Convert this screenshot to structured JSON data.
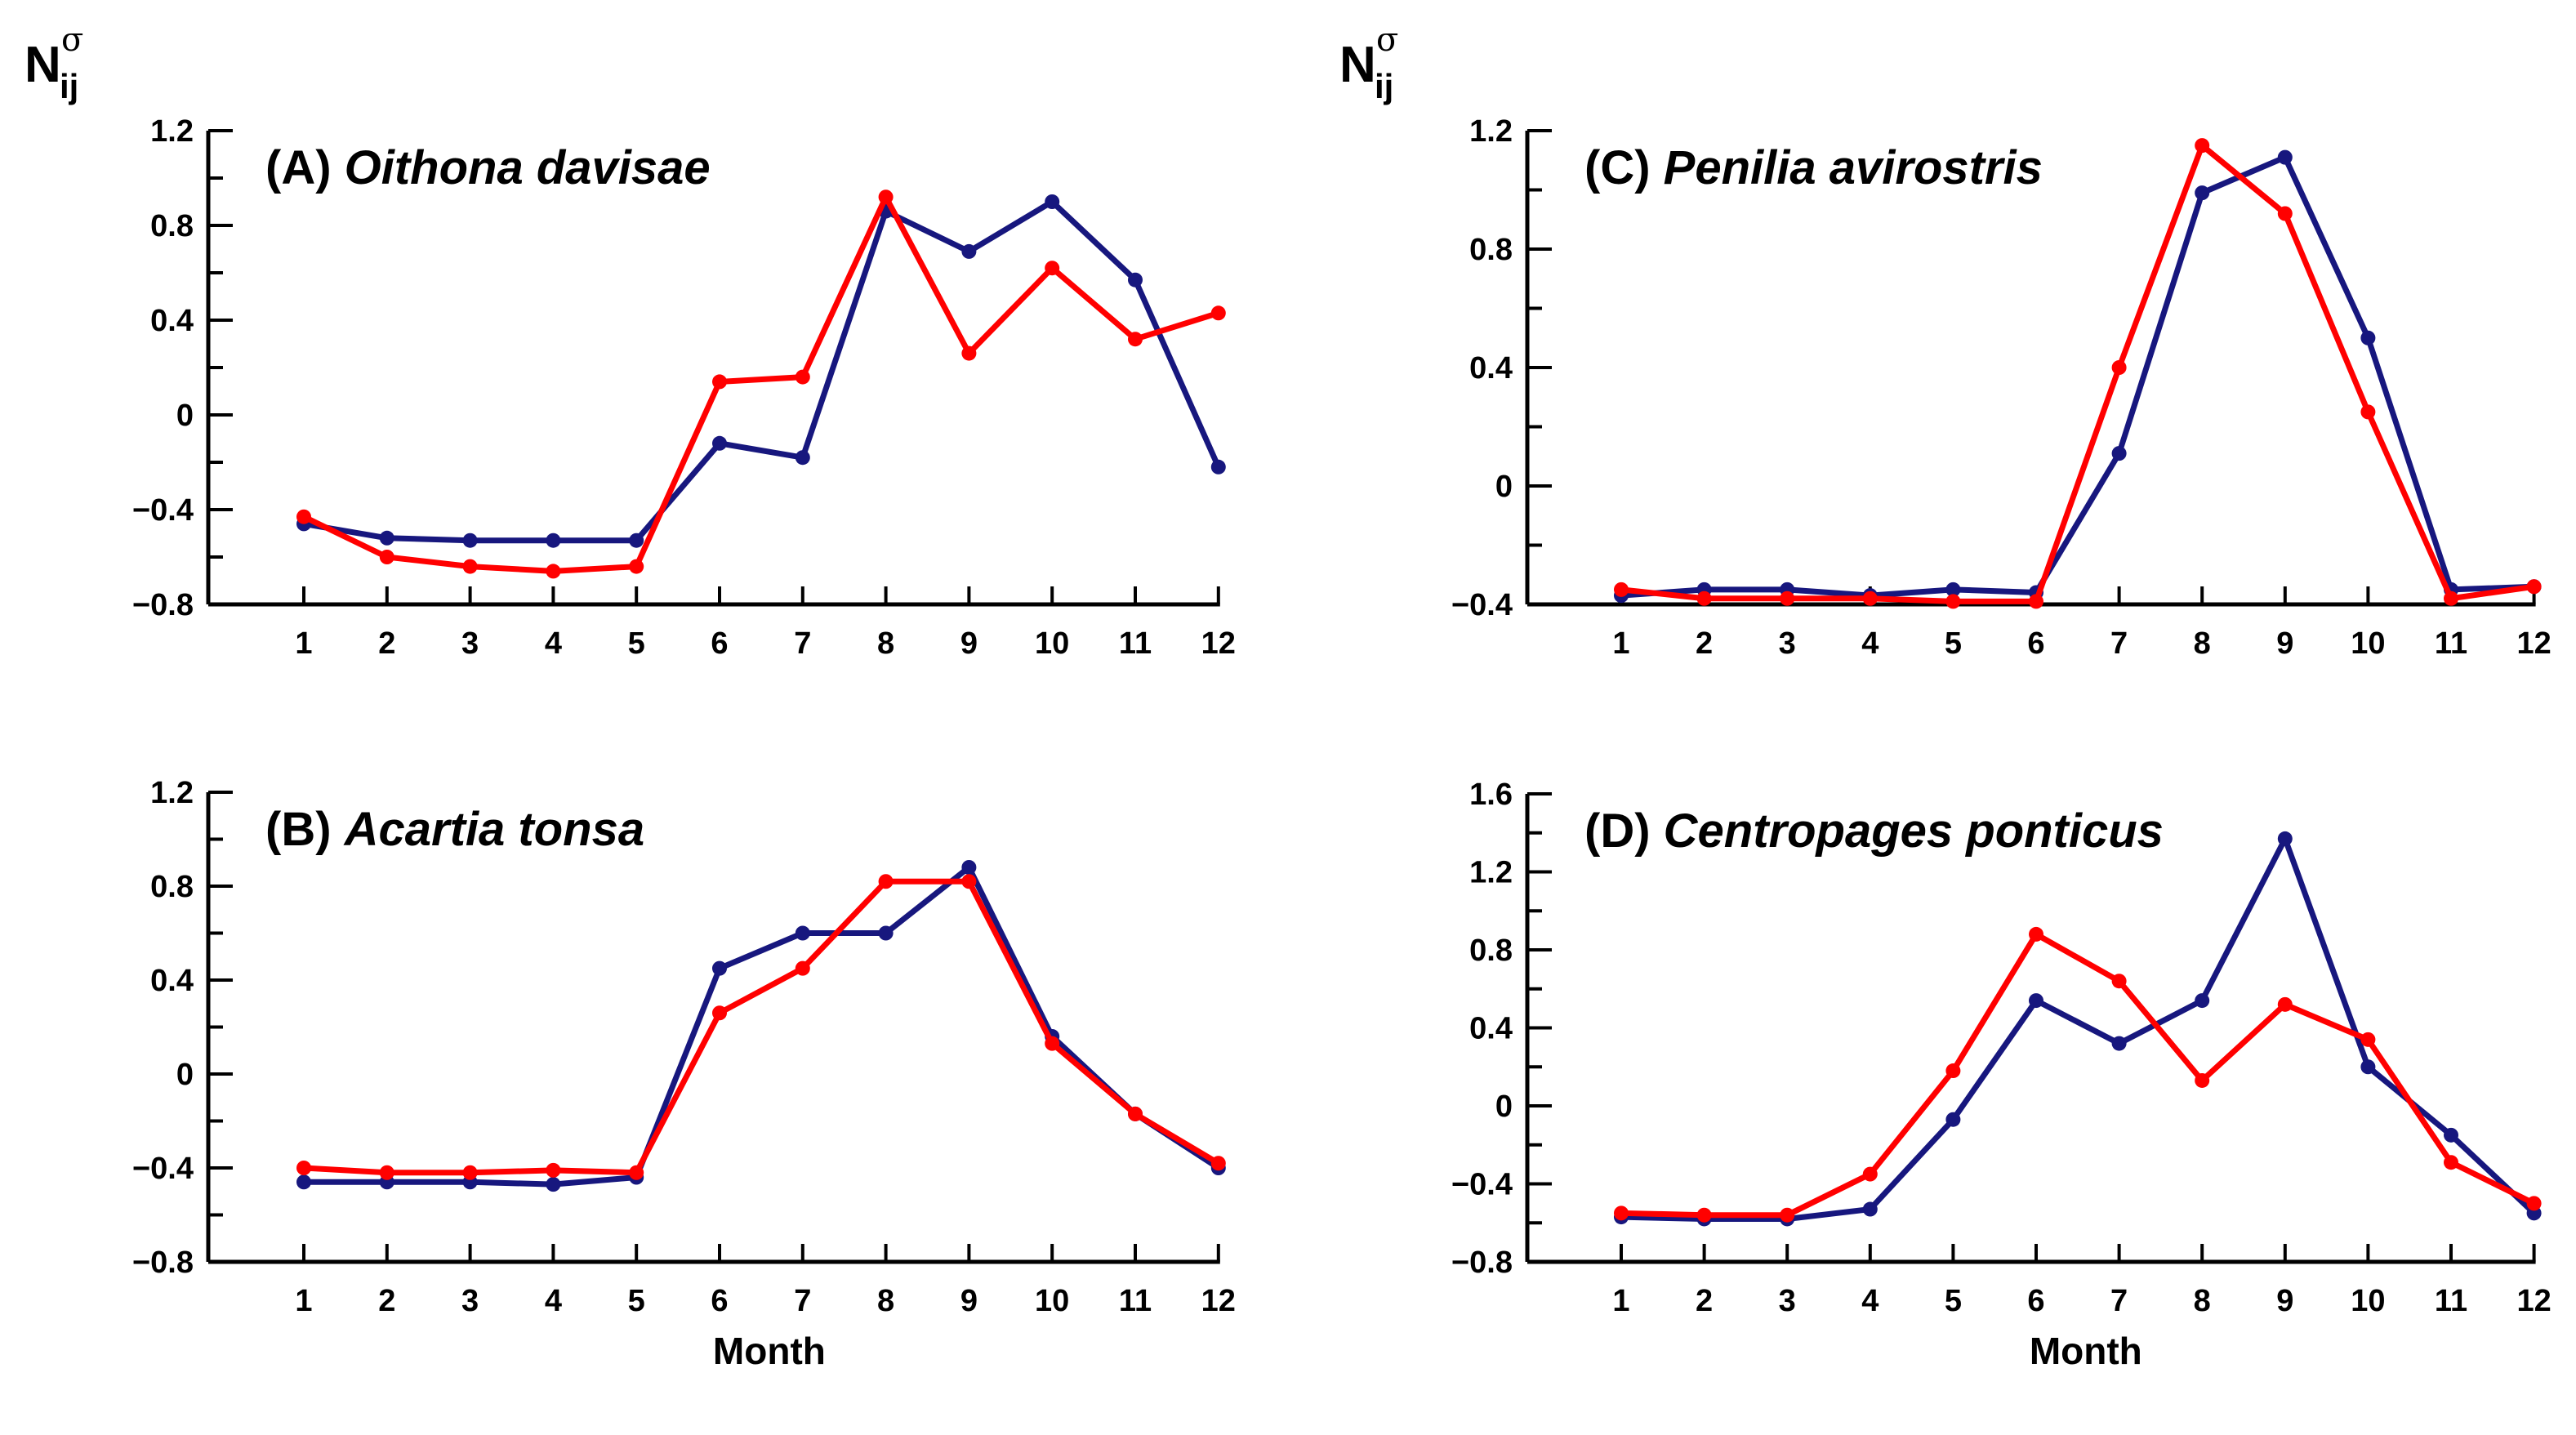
{
  "ylabel": {
    "main": "N",
    "sub": "ij",
    "sup": "σ"
  },
  "colors": {
    "series1": "#17177e",
    "series2": "#ff0000",
    "axis": "#000000"
  },
  "chart_data": [
    {
      "id": "A",
      "type": "line",
      "title_prefix": "(A)",
      "title_species": "Oithona davisae",
      "xlabel": "",
      "ylabel": "N_ij^σ",
      "x": [
        1,
        2,
        3,
        4,
        5,
        6,
        7,
        8,
        9,
        10,
        11,
        12
      ],
      "xticks": [
        "1",
        "2",
        "3",
        "4",
        "5",
        "6",
        "7",
        "8",
        "9",
        "10",
        "11",
        "12"
      ],
      "ylim": [
        -0.8,
        1.2
      ],
      "yticks": [
        "-0.8",
        "-0.4",
        "0",
        "0.4",
        "0.8",
        "1.2"
      ],
      "series": [
        {
          "name": "blue",
          "values": [
            -0.46,
            -0.52,
            -0.53,
            -0.53,
            -0.53,
            -0.12,
            -0.18,
            0.86,
            0.69,
            0.9,
            0.57,
            -0.22
          ]
        },
        {
          "name": "red",
          "values": [
            -0.43,
            -0.6,
            -0.64,
            -0.66,
            -0.64,
            0.14,
            0.16,
            0.92,
            0.26,
            0.62,
            0.32,
            0.43
          ]
        }
      ]
    },
    {
      "id": "B",
      "type": "line",
      "title_prefix": "(B)",
      "title_species": "Acartia tonsa",
      "xlabel": "Month",
      "ylabel": "",
      "x": [
        1,
        2,
        3,
        4,
        5,
        6,
        7,
        8,
        9,
        10,
        11,
        12
      ],
      "xticks": [
        "1",
        "2",
        "3",
        "4",
        "5",
        "6",
        "7",
        "8",
        "9",
        "10",
        "11",
        "12"
      ],
      "ylim": [
        -0.8,
        1.2
      ],
      "yticks": [
        "-0.8",
        "-0.4",
        "0",
        "0.4",
        "0.8",
        "1.2"
      ],
      "series": [
        {
          "name": "blue",
          "values": [
            -0.46,
            -0.46,
            -0.46,
            -0.47,
            -0.44,
            0.45,
            0.6,
            0.6,
            0.88,
            0.16,
            -0.17,
            -0.4
          ]
        },
        {
          "name": "red",
          "values": [
            -0.4,
            -0.42,
            -0.42,
            -0.41,
            -0.42,
            0.26,
            0.45,
            0.82,
            0.82,
            0.13,
            -0.17,
            -0.38
          ]
        }
      ]
    },
    {
      "id": "C",
      "type": "line",
      "title_prefix": "(C)",
      "title_species": "Penilia avirostris",
      "xlabel": "",
      "ylabel": "N_ij^σ",
      "x": [
        1,
        2,
        3,
        4,
        5,
        6,
        7,
        8,
        9,
        10,
        11,
        12
      ],
      "xticks": [
        "1",
        "2",
        "3",
        "4",
        "5",
        "6",
        "7",
        "8",
        "9",
        "10",
        "11",
        "12"
      ],
      "ylim": [
        -0.4,
        1.2
      ],
      "yticks": [
        "-0.4",
        "0",
        "0.4",
        "0.8",
        "1.2"
      ],
      "series": [
        {
          "name": "blue",
          "values": [
            -0.37,
            -0.35,
            -0.35,
            -0.37,
            -0.35,
            -0.36,
            0.11,
            0.99,
            1.11,
            0.5,
            -0.35,
            -0.34
          ]
        },
        {
          "name": "red",
          "values": [
            -0.35,
            -0.38,
            -0.38,
            -0.38,
            -0.39,
            -0.39,
            0.4,
            1.15,
            0.92,
            0.25,
            -0.38,
            -0.34
          ]
        }
      ]
    },
    {
      "id": "D",
      "type": "line",
      "title_prefix": "(D)",
      "title_species": "Centropages ponticus",
      "xlabel": "Month",
      "ylabel": "",
      "x": [
        1,
        2,
        3,
        4,
        5,
        6,
        7,
        8,
        9,
        10,
        11,
        12
      ],
      "xticks": [
        "1",
        "2",
        "3",
        "4",
        "5",
        "6",
        "7",
        "8",
        "9",
        "10",
        "11",
        "12"
      ],
      "ylim": [
        -0.8,
        1.6
      ],
      "yticks": [
        "-0.8",
        "-0.4",
        "0",
        "0.4",
        "0.8",
        "1.2",
        "1.6"
      ],
      "series": [
        {
          "name": "blue",
          "values": [
            -0.57,
            -0.58,
            -0.58,
            -0.53,
            -0.07,
            0.54,
            0.32,
            0.54,
            1.37,
            0.2,
            -0.15,
            -0.55
          ]
        },
        {
          "name": "red",
          "values": [
            -0.55,
            -0.56,
            -0.56,
            -0.35,
            0.18,
            0.88,
            0.64,
            0.13,
            0.52,
            0.34,
            -0.29,
            -0.5
          ]
        }
      ]
    }
  ]
}
